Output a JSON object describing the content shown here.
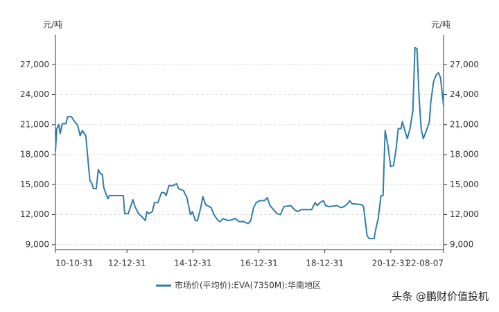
{
  "chart_data": {
    "type": "line",
    "y_label": "元/吨",
    "y2_label": "元/吨",
    "x": [
      "10-10-31",
      "10-11-14",
      "10-12-07",
      "10-12-22",
      "11-01-15",
      "11-02-23",
      "11-03-16",
      "11-04-24",
      "11-06-01",
      "11-07-01",
      "11-08-01",
      "11-08-25",
      "11-10-02",
      "11-11-02",
      "11-11-17",
      "11-12-10",
      "11-12-25",
      "12-01-26",
      "12-02-18",
      "12-03-11",
      "12-04-03",
      "12-04-18",
      "12-05-11",
      "12-06-04",
      "12-06-19",
      "12-11-21",
      "12-12-06",
      "13-01-14",
      "13-02-06",
      "13-03-07",
      "13-03-30",
      "13-05-07",
      "13-06-15",
      "13-07-23",
      "13-08-08",
      "13-08-31",
      "13-10-08",
      "13-11-01",
      "13-12-09",
      "14-01-17",
      "14-02-17",
      "14-03-10",
      "14-04-10",
      "14-05-25",
      "14-07-03",
      "14-07-26",
      "14-09-18",
      "14-10-26",
      "14-12-04",
      "14-12-27",
      "15-01-27",
      "15-02-20",
      "15-03-28",
      "15-04-20",
      "15-05-21",
      "15-07-21",
      "15-08-21",
      "15-10-06",
      "15-10-29",
      "15-11-29",
      "16-01-30",
      "16-04-15",
      "16-05-23",
      "16-07-16",
      "16-09-01",
      "16-10-02",
      "16-11-02",
      "16-12-02",
      "17-01-10",
      "17-03-03",
      "17-04-03",
      "17-05-03",
      "17-06-11",
      "17-07-19",
      "17-08-27",
      "17-10-04",
      "17-12-20",
      "18-01-28",
      "18-03-06",
      "18-04-14",
      "18-08-07",
      "18-09-15",
      "18-10-08",
      "18-11-08",
      "18-12-16",
      "19-01-09",
      "19-02-16",
      "19-05-17",
      "19-06-25",
      "19-08-03",
      "19-09-10",
      "19-10-03",
      "19-10-26",
      "20-02-12",
      "20-03-04",
      "20-03-20",
      "20-04-12",
      "20-05-05",
      "20-06-28",
      "20-07-21",
      "20-08-13",
      "20-09-13",
      "20-10-06",
      "20-10-29",
      "20-11-29",
      "20-12-29",
      "21-01-30",
      "21-02-28",
      "21-03-23",
      "21-04-23",
      "21-05-08",
      "21-06-08",
      "21-07-01",
      "21-08-01",
      "21-09-01",
      "21-09-24",
      "21-10-17",
      "21-11-09",
      "21-12-02",
      "21-12-25",
      "22-01-25",
      "22-03-03",
      "22-03-18",
      "22-04-18",
      "22-05-19",
      "22-06-11",
      "22-07-04",
      "22-08-07"
    ],
    "series": [
      {
        "name": "市场价(平均价):EVA(7350M):华南地区",
        "color": "#2e7ca8",
        "values": [
          18300,
          20600,
          21000,
          20100,
          21100,
          21100,
          21800,
          21800,
          21300,
          21000,
          19900,
          20400,
          19900,
          16800,
          15400,
          15100,
          14600,
          14600,
          16500,
          16100,
          16000,
          14700,
          14100,
          13600,
          13900,
          13900,
          12100,
          12100,
          12700,
          13500,
          12800,
          12100,
          11800,
          11400,
          12300,
          12100,
          12300,
          13200,
          13200,
          14200,
          14200,
          13900,
          14900,
          14900,
          15100,
          14600,
          14400,
          13700,
          12000,
          12300,
          11400,
          11400,
          12700,
          13800,
          13000,
          12700,
          12000,
          11400,
          11300,
          11600,
          11400,
          11600,
          11300,
          11300,
          11100,
          11400,
          12700,
          13200,
          13400,
          13400,
          13700,
          12900,
          12500,
          12100,
          12000,
          12800,
          12900,
          12500,
          12300,
          12500,
          12500,
          13200,
          12900,
          13200,
          13400,
          12900,
          12800,
          12900,
          12700,
          12800,
          13100,
          13400,
          13100,
          13000,
          12800,
          11600,
          9900,
          9600,
          9600,
          10700,
          11600,
          13900,
          13900,
          20400,
          18900,
          16800,
          16900,
          18600,
          20600,
          20600,
          21300,
          20300,
          19600,
          20600,
          22400,
          28700,
          28600,
          23700,
          20600,
          19600,
          20300,
          21300,
          23200,
          25300,
          26000,
          26200,
          25700,
          22900
        ]
      }
    ],
    "xlim": [
      "10-10-31",
      "22-08-07"
    ],
    "xticks": [
      "10-10-31",
      "12-12-31",
      "14-12-31",
      "16-12-31",
      "18-12-31",
      "20-12-31",
      "22-08-07"
    ],
    "ylim": [
      8500,
      30000
    ],
    "yticks": [
      {
        "value": 9000,
        "label": "9,000"
      },
      {
        "value": 12000,
        "label": "12,000"
      },
      {
        "value": 15000,
        "label": "15,000"
      },
      {
        "value": 18000,
        "label": "18,000"
      },
      {
        "value": 21000,
        "label": "21,000"
      },
      {
        "value": 24000,
        "label": "24,000"
      },
      {
        "value": 27000,
        "label": "27,000"
      }
    ],
    "y2lim": [
      8500,
      30000
    ],
    "y2ticks": [
      {
        "value": 9000,
        "label": "9,000"
      },
      {
        "value": 12000,
        "label": "12,000"
      },
      {
        "value": 15000,
        "label": "15,000"
      },
      {
        "value": 18000,
        "label": "18,000"
      },
      {
        "value": 21000,
        "label": "21,000"
      },
      {
        "value": 24000,
        "label": "24,000"
      },
      {
        "value": 27000,
        "label": "27,000"
      }
    ],
    "grid": true,
    "watermark": "头条 @鹏财价值投机"
  }
}
